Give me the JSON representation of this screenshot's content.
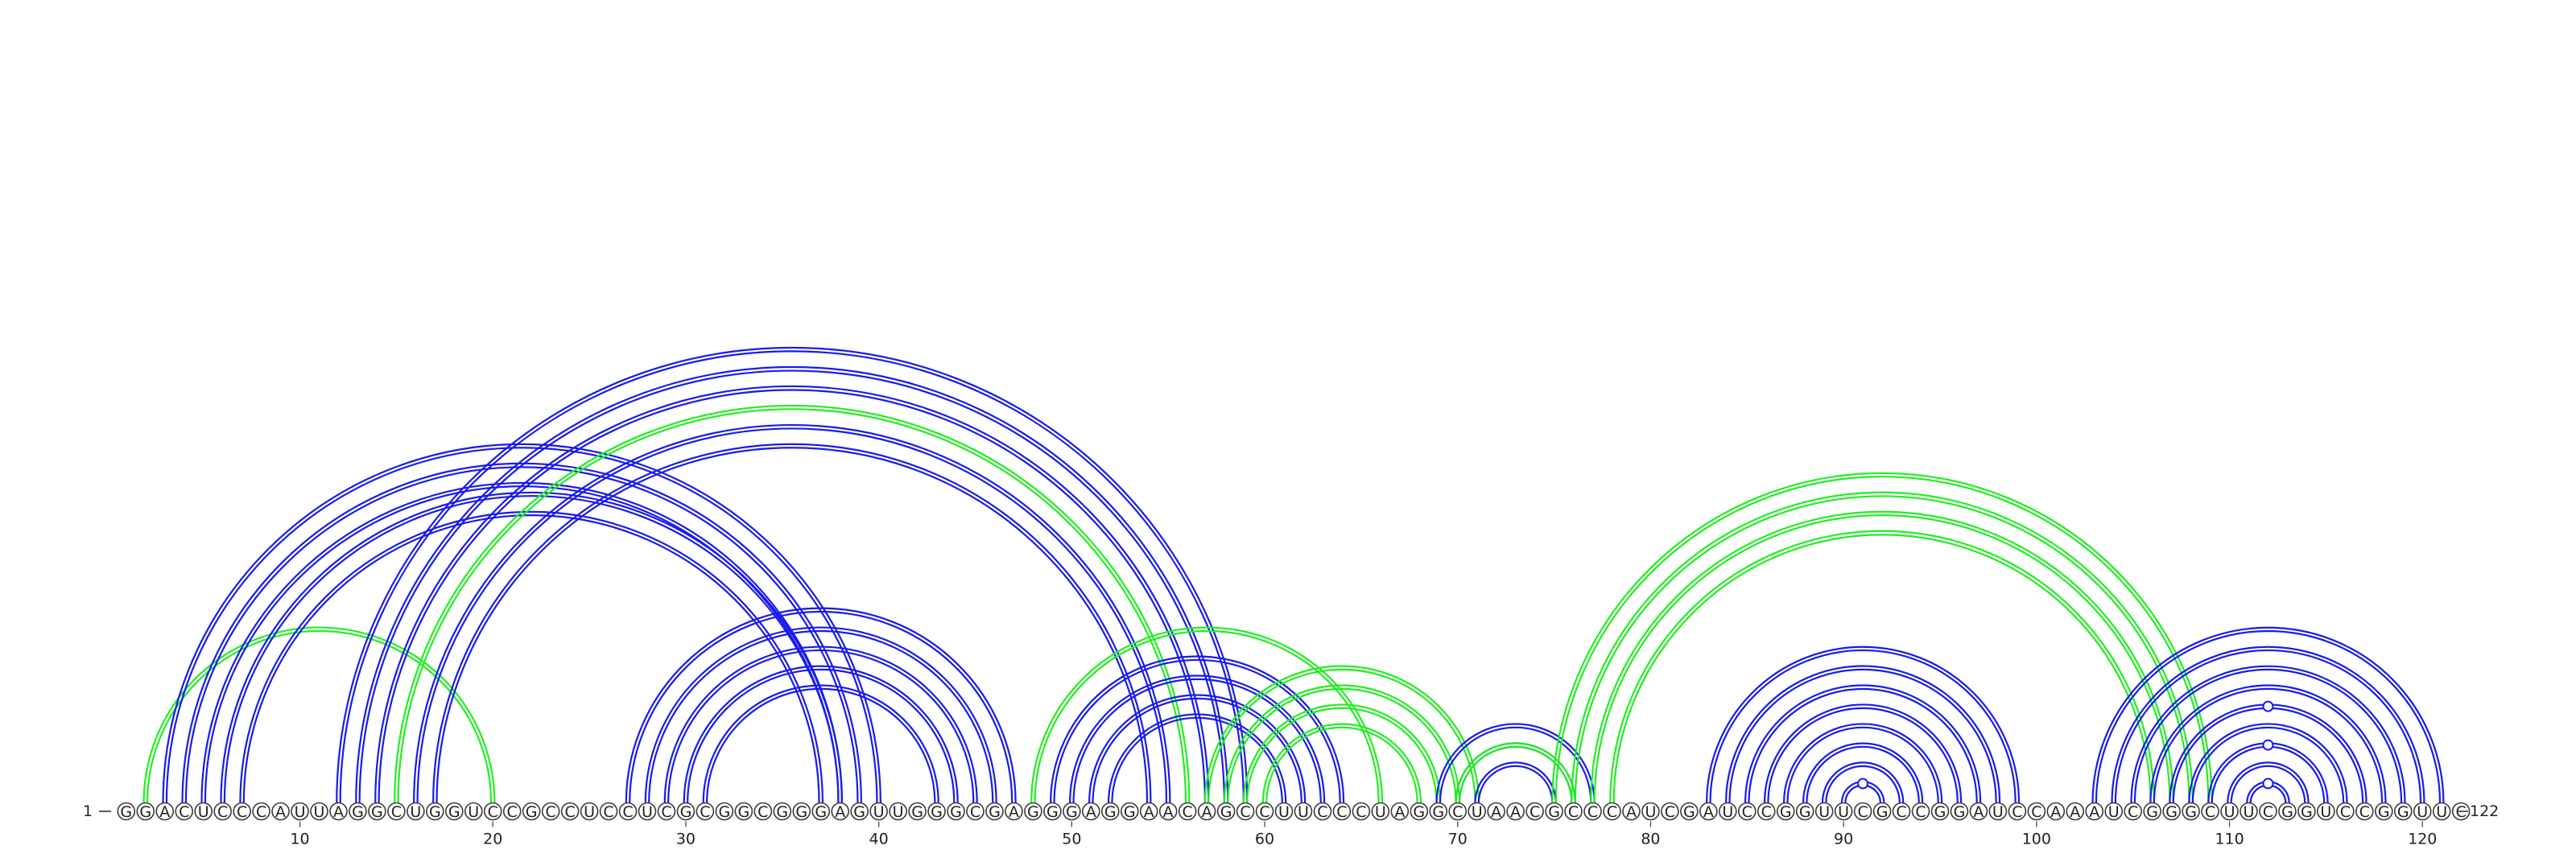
{
  "sequence": "GGACUCCCAUUAGGCUGGUCCGCCUCCUCGCGGCGGGAGUUGGGCGAGGGAGGAACAGCCUUCCCUAGGCUAACGCCCAUCGAUCCGGUUCGCCGGAUCCAAAUCGGGCUUCGGUCCGGUUC",
  "start_label": "1",
  "end_label": "122",
  "tick_positions": [
    10,
    20,
    30,
    40,
    50,
    60,
    70,
    80,
    90,
    100,
    110,
    120
  ],
  "colors": {
    "blue": "#1a1aee",
    "green": "#22ee22"
  },
  "helices": [
    {
      "color": "green",
      "outer": [
        2,
        20
      ],
      "count": 1
    },
    {
      "color": "blue",
      "outer": [
        3,
        40
      ],
      "count": 3
    },
    {
      "color": "blue",
      "outer": [
        6,
        38
      ],
      "count": 2
    },
    {
      "color": "blue",
      "outer": [
        12,
        59
      ],
      "count": 3
    },
    {
      "color": "green",
      "outer": [
        15,
        56
      ],
      "count": 1
    },
    {
      "color": "blue",
      "outer": [
        16,
        55
      ],
      "count": 2
    },
    {
      "color": "blue",
      "outer": [
        27,
        47
      ],
      "count": 5
    },
    {
      "color": "green",
      "outer": [
        48,
        66
      ],
      "count": 1
    },
    {
      "color": "blue",
      "outer": [
        49,
        64
      ],
      "count": 4
    },
    {
      "color": "green",
      "outer": [
        57,
        71
      ],
      "count": 4
    },
    {
      "color": "blue",
      "outer": [
        69,
        77
      ],
      "count": 3
    },
    {
      "color": "green",
      "outer": [
        70,
        76
      ],
      "count": 1
    },
    {
      "color": "green",
      "outer": [
        75,
        109
      ],
      "count": 4
    },
    {
      "color": "blue",
      "outer": [
        83,
        99
      ],
      "count": 8
    },
    {
      "color": "blue",
      "outer": [
        103,
        121
      ],
      "count": 9
    }
  ],
  "pseudo_pairs": [
    91,
    112
  ]
}
